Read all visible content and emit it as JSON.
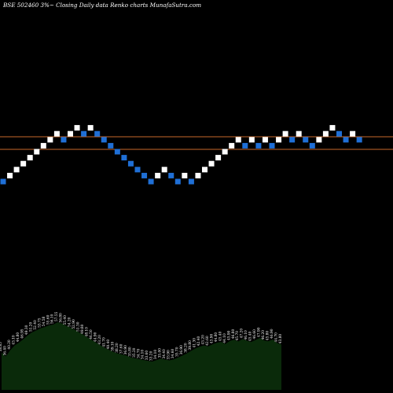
{
  "title": "BSE 502460  3%~  Closing Daily data  Renko  charts MunafaSutra.com",
  "chart_data": {
    "type": "renko",
    "title": "BSE 502460  3%~  Closing Daily data  Renko  charts MunafaSutra.com",
    "brick_colors": {
      "up": "#ffffff",
      "down": "#1f6fd6"
    },
    "background": "#000000",
    "reference_lines": [
      {
        "name": "upper",
        "color": "#c8692a"
      },
      {
        "name": "lower",
        "color": "#c8692a"
      }
    ],
    "bricks": [
      {
        "step": 0,
        "dir": "down"
      },
      {
        "step": 1,
        "dir": "up"
      },
      {
        "step": 2,
        "dir": "up"
      },
      {
        "step": 3,
        "dir": "up"
      },
      {
        "step": 4,
        "dir": "up"
      },
      {
        "step": 5,
        "dir": "up"
      },
      {
        "step": 6,
        "dir": "up"
      },
      {
        "step": 7,
        "dir": "up"
      },
      {
        "step": 8,
        "dir": "up"
      },
      {
        "step": 7,
        "dir": "down"
      },
      {
        "step": 8,
        "dir": "up"
      },
      {
        "step": 9,
        "dir": "up"
      },
      {
        "step": 8,
        "dir": "down"
      },
      {
        "step": 9,
        "dir": "up"
      },
      {
        "step": 8,
        "dir": "down"
      },
      {
        "step": 7,
        "dir": "down"
      },
      {
        "step": 6,
        "dir": "down"
      },
      {
        "step": 5,
        "dir": "down"
      },
      {
        "step": 4,
        "dir": "down"
      },
      {
        "step": 3,
        "dir": "down"
      },
      {
        "step": 2,
        "dir": "down"
      },
      {
        "step": 1,
        "dir": "down"
      },
      {
        "step": 0,
        "dir": "down"
      },
      {
        "step": 1,
        "dir": "up"
      },
      {
        "step": 2,
        "dir": "up"
      },
      {
        "step": 1,
        "dir": "down"
      },
      {
        "step": 0,
        "dir": "down"
      },
      {
        "step": 1,
        "dir": "up"
      },
      {
        "step": 0,
        "dir": "down"
      },
      {
        "step": 1,
        "dir": "up"
      },
      {
        "step": 2,
        "dir": "up"
      },
      {
        "step": 3,
        "dir": "up"
      },
      {
        "step": 4,
        "dir": "up"
      },
      {
        "step": 5,
        "dir": "up"
      },
      {
        "step": 6,
        "dir": "up"
      },
      {
        "step": 7,
        "dir": "up"
      },
      {
        "step": 6,
        "dir": "down"
      },
      {
        "step": 7,
        "dir": "up"
      },
      {
        "step": 6,
        "dir": "down"
      },
      {
        "step": 7,
        "dir": "up"
      },
      {
        "step": 6,
        "dir": "down"
      },
      {
        "step": 7,
        "dir": "up"
      },
      {
        "step": 8,
        "dir": "up"
      },
      {
        "step": 7,
        "dir": "down"
      },
      {
        "step": 8,
        "dir": "up"
      },
      {
        "step": 7,
        "dir": "down"
      },
      {
        "step": 6,
        "dir": "down"
      },
      {
        "step": 7,
        "dir": "up"
      },
      {
        "step": 8,
        "dir": "up"
      },
      {
        "step": 9,
        "dir": "up"
      },
      {
        "step": 8,
        "dir": "down"
      },
      {
        "step": 7,
        "dir": "down"
      },
      {
        "step": 8,
        "dir": "up"
      },
      {
        "step": 7,
        "dir": "down"
      }
    ],
    "volume": {
      "color": "#0a2a0a",
      "labels": [
        "38.85",
        "36.40",
        "40.20",
        "43.10",
        "44.80",
        "46.95",
        "49.30",
        "51.20",
        "52.40",
        "53.75",
        "54.58",
        "55.60",
        "56.10",
        "57.55",
        "56.80",
        "55.40",
        "54.20",
        "52.90",
        "51.30",
        "49.80",
        "48.10",
        "46.50",
        "44.90",
        "43.20",
        "41.70",
        "40.40",
        "39.10",
        "38.20",
        "37.60",
        "36.90",
        "35.80",
        "35.20",
        "34.70",
        "34.10",
        "33.60",
        "33.20",
        "34.10",
        "35.00",
        "34.40",
        "33.90",
        "34.60",
        "35.70",
        "36.90",
        "38.20",
        "39.80",
        "41.30",
        "42.40",
        "43.20",
        "42.60",
        "43.90",
        "44.80",
        "45.40",
        "44.10",
        "45.90",
        "46.80",
        "45.70",
        "47.20",
        "46.10",
        "45.40",
        "46.60",
        "47.90",
        "46.20",
        "45.80",
        "46.90",
        "44.70",
        "43.80"
      ]
    }
  }
}
